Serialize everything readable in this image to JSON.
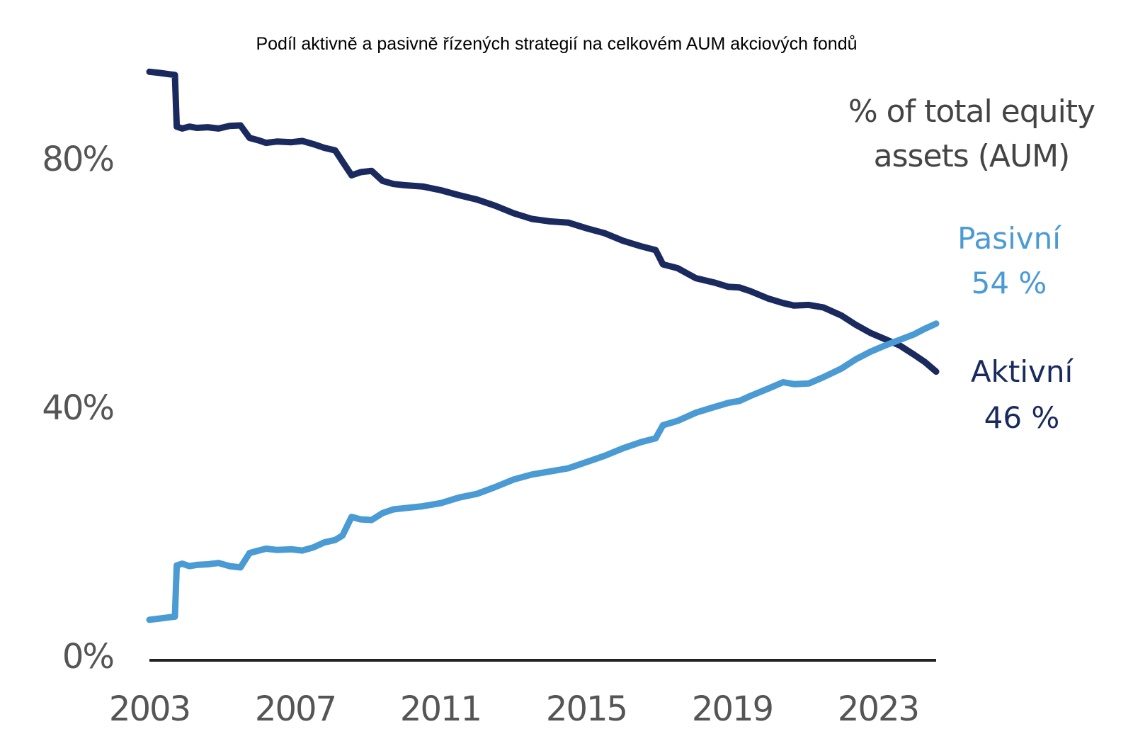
{
  "chart_data": {
    "type": "line",
    "title": "Podíl aktivně a pasivně řízených strategií na celkovém AUM akciových fondů",
    "unit_label": [
      "% of total equity",
      "assets (AUM)"
    ],
    "xlabel": "",
    "ylabel": "",
    "xlim": [
      2003.0,
      2024.6
    ],
    "ylim": [
      0,
      95
    ],
    "x_ticks": [
      2003,
      2007,
      2011,
      2015,
      2019,
      2023
    ],
    "x_tick_labels": [
      "2003",
      "2007",
      "2011",
      "2015",
      "2019",
      "2023"
    ],
    "y_ticks": [
      0,
      40,
      80
    ],
    "y_tick_labels": [
      "0%",
      "40%",
      "80%"
    ],
    "grid": false,
    "series": [
      {
        "name": "Aktivní",
        "color": "#1a2a5e",
        "end_label": [
          "Aktivní",
          "46 %"
        ],
        "points": [
          [
            2003.0,
            94.4
          ],
          [
            2003.3,
            94.2
          ],
          [
            2003.55,
            94.0
          ],
          [
            2003.7,
            93.9
          ],
          [
            2003.75,
            85.6
          ],
          [
            2003.9,
            85.3
          ],
          [
            2004.1,
            85.6
          ],
          [
            2004.3,
            85.4
          ],
          [
            2004.6,
            85.5
          ],
          [
            2004.9,
            85.3
          ],
          [
            2005.2,
            85.7
          ],
          [
            2005.5,
            85.8
          ],
          [
            2005.75,
            83.8
          ],
          [
            2006.0,
            83.4
          ],
          [
            2006.2,
            83.0
          ],
          [
            2006.5,
            83.2
          ],
          [
            2006.9,
            83.1
          ],
          [
            2007.2,
            83.3
          ],
          [
            2007.5,
            82.8
          ],
          [
            2007.8,
            82.2
          ],
          [
            2008.1,
            81.8
          ],
          [
            2008.3,
            80.0
          ],
          [
            2008.55,
            77.8
          ],
          [
            2008.8,
            78.3
          ],
          [
            2009.1,
            78.5
          ],
          [
            2009.4,
            76.9
          ],
          [
            2009.7,
            76.4
          ],
          [
            2010.0,
            76.2
          ],
          [
            2010.5,
            76.0
          ],
          [
            2011.0,
            75.4
          ],
          [
            2011.5,
            74.6
          ],
          [
            2012.0,
            73.9
          ],
          [
            2012.5,
            72.9
          ],
          [
            2013.0,
            71.7
          ],
          [
            2013.5,
            70.8
          ],
          [
            2014.0,
            70.4
          ],
          [
            2014.5,
            70.2
          ],
          [
            2015.0,
            69.3
          ],
          [
            2015.5,
            68.5
          ],
          [
            2016.0,
            67.3
          ],
          [
            2016.5,
            66.4
          ],
          [
            2016.9,
            65.8
          ],
          [
            2017.1,
            63.5
          ],
          [
            2017.5,
            62.9
          ],
          [
            2018.0,
            61.3
          ],
          [
            2018.5,
            60.6
          ],
          [
            2018.9,
            59.9
          ],
          [
            2019.2,
            59.8
          ],
          [
            2019.5,
            59.2
          ],
          [
            2020.0,
            58.0
          ],
          [
            2020.4,
            57.3
          ],
          [
            2020.7,
            56.9
          ],
          [
            2021.1,
            57.0
          ],
          [
            2021.5,
            56.6
          ],
          [
            2022.0,
            55.3
          ],
          [
            2022.4,
            53.8
          ],
          [
            2022.8,
            52.5
          ],
          [
            2023.2,
            51.5
          ],
          [
            2023.6,
            50.5
          ],
          [
            2024.0,
            49.0
          ],
          [
            2024.3,
            47.8
          ],
          [
            2024.6,
            46.3
          ]
        ]
      },
      {
        "name": "Pasivní",
        "color": "#4a9ad4",
        "end_label": [
          "Pasivní",
          "54 %"
        ],
        "points": [
          [
            2003.0,
            6.5
          ],
          [
            2003.3,
            6.7
          ],
          [
            2003.55,
            6.9
          ],
          [
            2003.7,
            7.0
          ],
          [
            2003.75,
            15.2
          ],
          [
            2003.9,
            15.5
          ],
          [
            2004.1,
            15.1
          ],
          [
            2004.3,
            15.3
          ],
          [
            2004.6,
            15.4
          ],
          [
            2004.9,
            15.6
          ],
          [
            2005.2,
            15.1
          ],
          [
            2005.5,
            14.9
          ],
          [
            2005.75,
            17.2
          ],
          [
            2006.0,
            17.6
          ],
          [
            2006.2,
            17.9
          ],
          [
            2006.5,
            17.7
          ],
          [
            2006.9,
            17.8
          ],
          [
            2007.2,
            17.6
          ],
          [
            2007.5,
            18.1
          ],
          [
            2007.8,
            18.9
          ],
          [
            2008.1,
            19.3
          ],
          [
            2008.3,
            20.0
          ],
          [
            2008.55,
            23.0
          ],
          [
            2008.8,
            22.6
          ],
          [
            2009.1,
            22.5
          ],
          [
            2009.4,
            23.6
          ],
          [
            2009.7,
            24.2
          ],
          [
            2010.0,
            24.4
          ],
          [
            2010.5,
            24.7
          ],
          [
            2011.0,
            25.2
          ],
          [
            2011.5,
            26.1
          ],
          [
            2012.0,
            26.7
          ],
          [
            2012.5,
            27.8
          ],
          [
            2013.0,
            29.0
          ],
          [
            2013.5,
            29.8
          ],
          [
            2014.0,
            30.3
          ],
          [
            2014.5,
            30.8
          ],
          [
            2015.0,
            31.8
          ],
          [
            2015.5,
            32.8
          ],
          [
            2016.0,
            34.0
          ],
          [
            2016.5,
            35.0
          ],
          [
            2016.9,
            35.6
          ],
          [
            2017.1,
            37.7
          ],
          [
            2017.5,
            38.4
          ],
          [
            2018.0,
            39.7
          ],
          [
            2018.5,
            40.6
          ],
          [
            2018.9,
            41.3
          ],
          [
            2019.2,
            41.6
          ],
          [
            2019.5,
            42.4
          ],
          [
            2020.0,
            43.6
          ],
          [
            2020.4,
            44.6
          ],
          [
            2020.7,
            44.3
          ],
          [
            2021.1,
            44.4
          ],
          [
            2021.5,
            45.4
          ],
          [
            2022.0,
            46.8
          ],
          [
            2022.4,
            48.3
          ],
          [
            2022.8,
            49.5
          ],
          [
            2023.2,
            50.5
          ],
          [
            2023.6,
            51.4
          ],
          [
            2024.0,
            52.3
          ],
          [
            2024.3,
            53.2
          ],
          [
            2024.6,
            54.0
          ]
        ]
      }
    ]
  }
}
